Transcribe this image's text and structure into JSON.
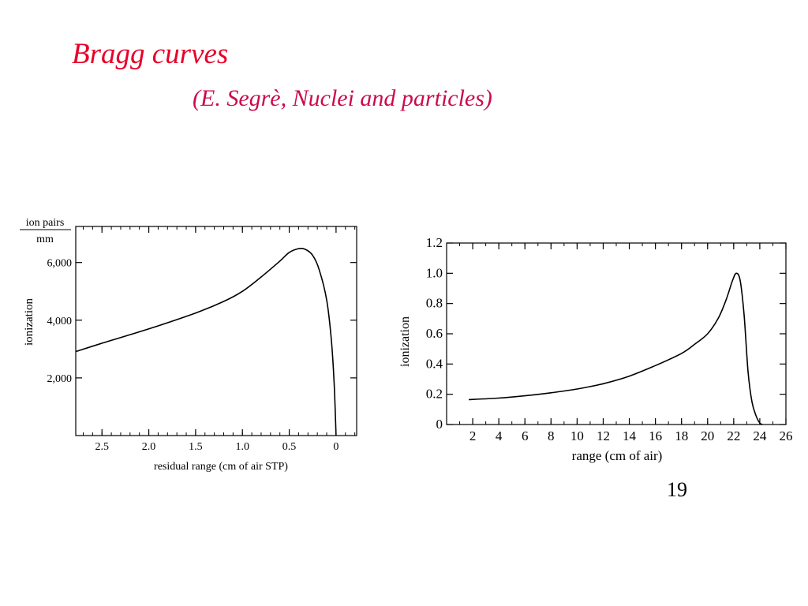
{
  "slide": {
    "title": "Bragg curves",
    "subtitle": "(E. Segrè, Nuclei and particles)",
    "page_number": "19",
    "title_color": "#e8002a",
    "subtitle_color": "#cc0a4a"
  },
  "chart_data": [
    {
      "type": "line",
      "title": "",
      "xlabel": "residual range (cm of air STP)",
      "ylabel": "ionization",
      "yunit_top": "ion pairs",
      "yunit_bottom": "mm",
      "x_reversed": true,
      "xlim": [
        2.78,
        -0.22
      ],
      "ylim": [
        0,
        7250
      ],
      "x_ticks": [
        2.5,
        2.0,
        1.5,
        1.0,
        0.5,
        0
      ],
      "x_tick_labels": [
        "2.5",
        "2.0",
        "1.5",
        "1.0",
        "0.5",
        "0"
      ],
      "y_ticks": [
        2000,
        4000,
        6000
      ],
      "y_tick_labels": [
        "2,000",
        "4,000",
        "6,000"
      ],
      "grid": false,
      "series": [
        {
          "x": [
            2.78,
            2.5,
            2.0,
            1.5,
            1.2,
            1.0,
            0.8,
            0.6,
            0.5,
            0.4,
            0.33,
            0.25,
            0.18,
            0.1,
            0.05,
            0.02,
            0.0
          ],
          "y": [
            2910,
            3200,
            3700,
            4250,
            4650,
            5000,
            5500,
            6050,
            6350,
            6480,
            6460,
            6250,
            5750,
            4700,
            3300,
            1800,
            0
          ]
        }
      ]
    },
    {
      "type": "line",
      "title": "",
      "xlabel": "range (cm of air)",
      "ylabel": "ionization",
      "xlim": [
        0,
        26
      ],
      "ylim": [
        0,
        1.2
      ],
      "x_ticks": [
        2,
        4,
        6,
        8,
        10,
        12,
        14,
        16,
        18,
        20,
        22,
        24,
        26
      ],
      "x_tick_labels": [
        "2",
        "4",
        "6",
        "8",
        "10",
        "12",
        "14",
        "16",
        "18",
        "20",
        "22",
        "24",
        "26"
      ],
      "y_ticks": [
        0,
        0.2,
        0.4,
        0.6,
        0.8,
        1.0,
        1.2
      ],
      "y_tick_labels": [
        "0",
        "0.2",
        "0.4",
        "0.6",
        "0.8",
        "1.0",
        "1.2"
      ],
      "grid": false,
      "series": [
        {
          "x": [
            1.7,
            4,
            6,
            8,
            10,
            12,
            14,
            16,
            18,
            19,
            20,
            20.8,
            21.4,
            21.9,
            22.2,
            22.5,
            22.8,
            23.1,
            23.4,
            23.7,
            24.0,
            24.2
          ],
          "y": [
            0.165,
            0.175,
            0.19,
            0.21,
            0.235,
            0.27,
            0.32,
            0.39,
            0.47,
            0.53,
            0.6,
            0.7,
            0.82,
            0.95,
            1.0,
            0.95,
            0.72,
            0.35,
            0.15,
            0.06,
            0.01,
            0.0
          ]
        }
      ]
    }
  ]
}
